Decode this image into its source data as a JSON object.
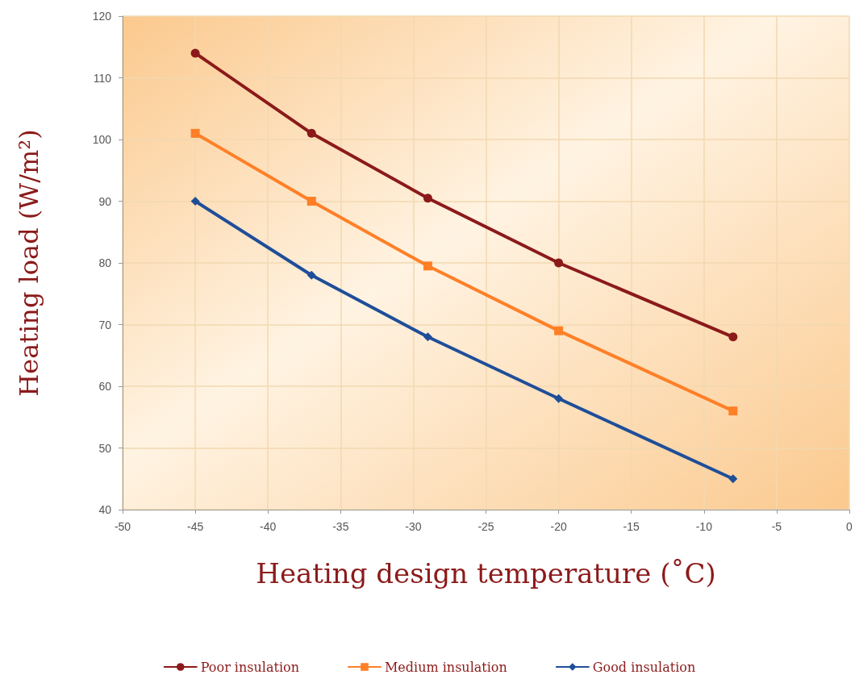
{
  "chart_data": {
    "type": "line",
    "xlabel": "Heating design temperature (˚C)",
    "ylabel": "Heating load (W/m²)",
    "xlim": [
      -50,
      0
    ],
    "xticks": [
      -50,
      -45,
      -40,
      -35,
      -30,
      -25,
      -20,
      -15,
      -10,
      -5,
      0
    ],
    "ylim": [
      40,
      120
    ],
    "yticks": [
      40,
      50,
      60,
      70,
      80,
      90,
      100,
      110,
      120
    ],
    "grid": true,
    "legend": "bottom",
    "line_style": "solid",
    "series": [
      {
        "name": "Poor insulation",
        "color": "#8b1a1a",
        "marker": "circle",
        "x": [
          -45,
          -37,
          -29,
          -20,
          -8
        ],
        "values": [
          114,
          101,
          90.5,
          80,
          68
        ]
      },
      {
        "name": "Medium insulation",
        "color": "#ff7f27",
        "marker": "square",
        "x": [
          -45,
          -37,
          -29,
          -20,
          -8
        ],
        "values": [
          101,
          90,
          79.5,
          69,
          56
        ]
      },
      {
        "name": "Good insulation",
        "color": "#1f4e99",
        "marker": "diamond",
        "x": [
          -45,
          -37,
          -29,
          -20,
          -8
        ],
        "values": [
          90,
          78,
          68,
          58,
          45
        ]
      }
    ]
  }
}
